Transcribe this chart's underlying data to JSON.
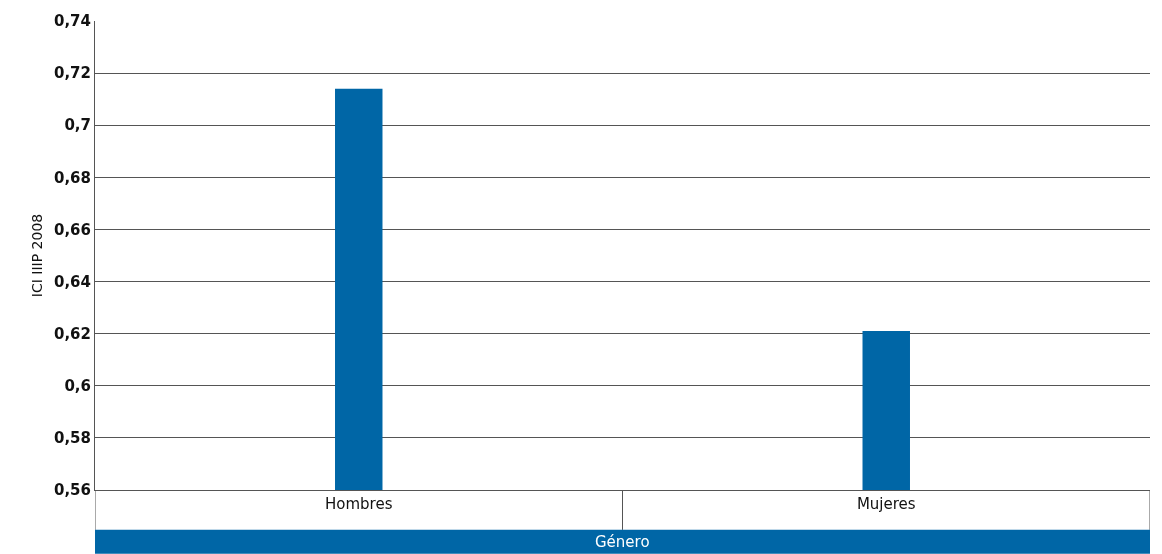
{
  "chart_data": {
    "type": "bar",
    "xlabel": "Género",
    "ylabel": "ICI IIIP 2008",
    "categories": [
      "Hombres",
      "Mujeres"
    ],
    "values": [
      0.714,
      0.621
    ],
    "color": "#0066a6",
    "ylim": [
      0.56,
      0.74
    ],
    "yticks": [
      {
        "value": 0.56,
        "label": "0,56"
      },
      {
        "value": 0.58,
        "label": "0,58"
      },
      {
        "value": 0.6,
        "label": "0,6"
      },
      {
        "value": 0.62,
        "label": "0,62"
      },
      {
        "value": 0.64,
        "label": "0,64"
      },
      {
        "value": 0.66,
        "label": "0,66"
      },
      {
        "value": 0.68,
        "label": "0,68"
      },
      {
        "value": 0.7,
        "label": "0,7"
      },
      {
        "value": 0.72,
        "label": "0,72"
      },
      {
        "value": 0.74,
        "label": "0,74"
      }
    ],
    "grid": "y"
  }
}
